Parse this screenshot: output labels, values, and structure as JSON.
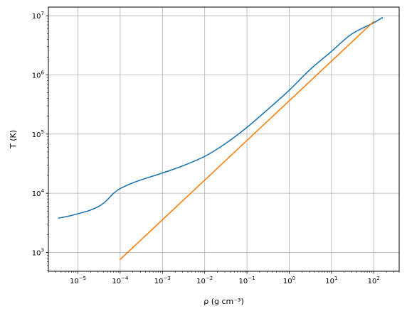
{
  "chart_data": {
    "type": "line",
    "title": "",
    "xlabel": "ρ (g cm⁻³)",
    "ylabel": "T (K)",
    "xscale": "log",
    "yscale": "log",
    "xlim": [
      2e-06,
      400
    ],
    "ylim": [
      480,
      14000000.0
    ],
    "grid": true,
    "legend": "none",
    "x_ticks": [
      {
        "value": 1e-05,
        "base": "10",
        "exp": "−5"
      },
      {
        "value": 0.0001,
        "base": "10",
        "exp": "−4"
      },
      {
        "value": 0.001,
        "base": "10",
        "exp": "−3"
      },
      {
        "value": 0.01,
        "base": "10",
        "exp": "−2"
      },
      {
        "value": 0.1,
        "base": "10",
        "exp": "−1"
      },
      {
        "value": 1,
        "base": "10",
        "exp": "0"
      },
      {
        "value": 10,
        "base": "10",
        "exp": "1"
      },
      {
        "value": 100,
        "base": "10",
        "exp": "2"
      }
    ],
    "y_ticks": [
      {
        "value": 1000.0,
        "base": "10",
        "exp": "3"
      },
      {
        "value": 10000.0,
        "base": "10",
        "exp": "4"
      },
      {
        "value": 100000.0,
        "base": "10",
        "exp": "5"
      },
      {
        "value": 1000000.0,
        "base": "10",
        "exp": "6"
      },
      {
        "value": 10000000.0,
        "base": "10",
        "exp": "7"
      }
    ],
    "series": [
      {
        "color": "#1f77b4",
        "points": [
          [
            3.5e-06,
            3800
          ],
          [
            6e-06,
            4100
          ],
          [
            1e-05,
            4500
          ],
          [
            2e-05,
            5200
          ],
          [
            3.5e-05,
            6300
          ],
          [
            5e-05,
            7800
          ],
          [
            7e-05,
            10000
          ],
          [
            0.0001,
            12000
          ],
          [
            0.0002,
            15000
          ],
          [
            0.0004,
            17800
          ],
          [
            0.001,
            22000
          ],
          [
            0.003,
            29000
          ],
          [
            0.01,
            42000
          ],
          [
            0.03,
            68000
          ],
          [
            0.1,
            130000
          ],
          [
            0.3,
            255000
          ],
          [
            1,
            550000
          ],
          [
            3,
            1200000
          ],
          [
            10,
            2500000
          ],
          [
            30,
            4900000
          ],
          [
            100,
            7600000
          ],
          [
            160,
            9300000
          ]
        ]
      },
      {
        "color": "#ff7f0e",
        "points": [
          [
            0.0001,
            760
          ],
          [
            100,
            8000000
          ]
        ]
      }
    ]
  }
}
